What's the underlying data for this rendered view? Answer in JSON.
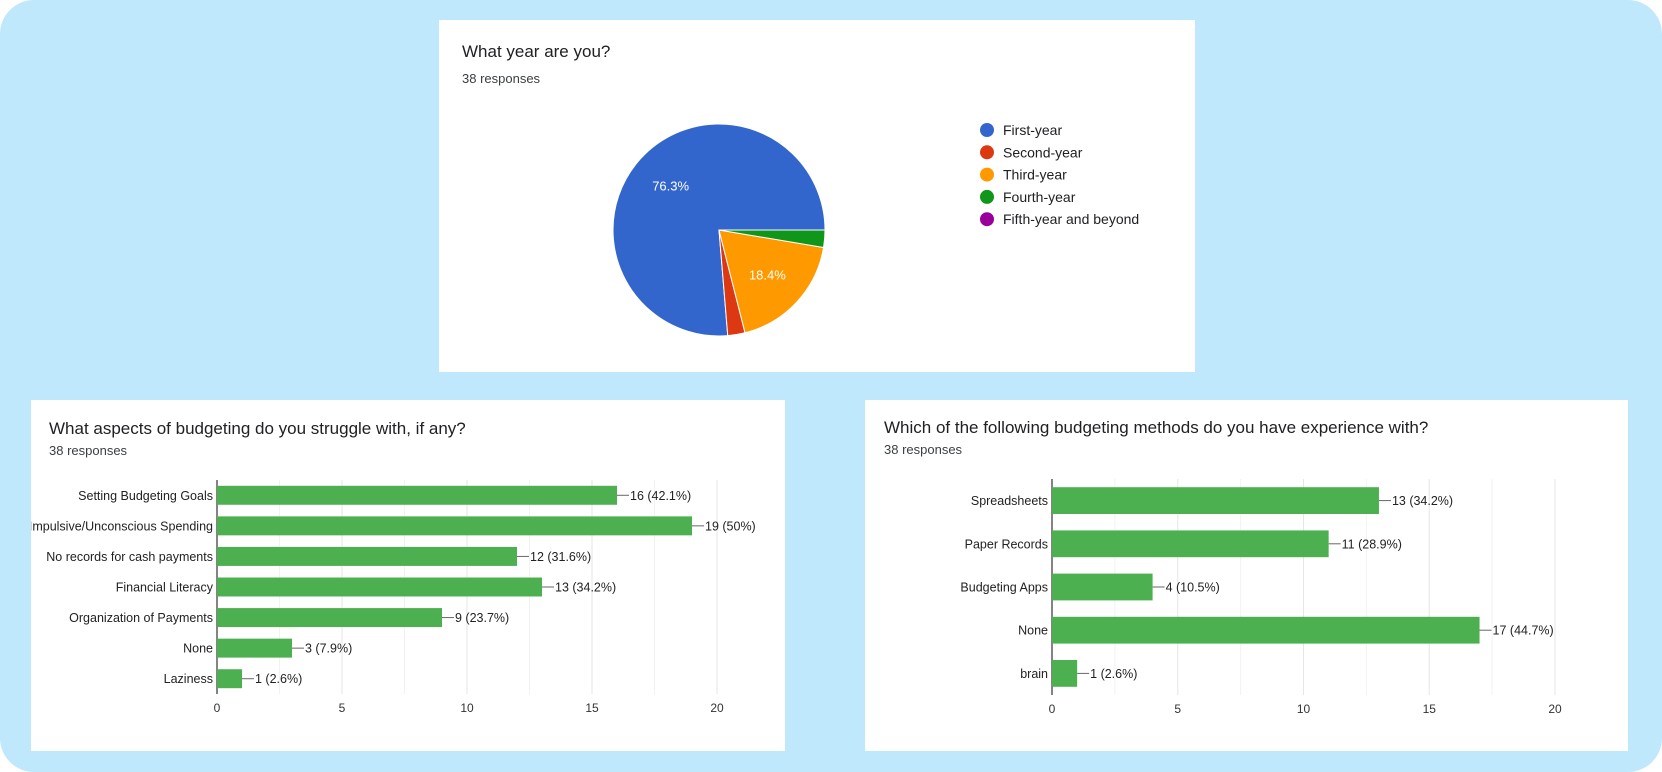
{
  "colors": {
    "background": "#bfe8fc",
    "bar": "#4caf50",
    "blue": "#3366cc",
    "red": "#dc3912",
    "orange": "#ff9900",
    "green": "#109618",
    "purple": "#990099"
  },
  "pie_card": {
    "title": "What year are you?",
    "responses": "38 responses"
  },
  "struggle_card": {
    "title": "What aspects of budgeting do you struggle with, if any?",
    "responses": "38 responses"
  },
  "methods_card": {
    "title": "Which of the following budgeting methods do you have experience with?",
    "responses": "38 responses"
  },
  "chart_data": [
    {
      "type": "pie",
      "title": "What year are you?",
      "subtitle": "38 responses",
      "categories": [
        "First-year",
        "Second-year",
        "Third-year",
        "Fourth-year",
        "Fifth-year and beyond"
      ],
      "values": [
        29,
        1,
        7,
        1,
        0
      ],
      "colors": [
        "#3366cc",
        "#dc3912",
        "#ff9900",
        "#109618",
        "#990099"
      ],
      "slice_labels": [
        "76.3%",
        "",
        "18.4%",
        "",
        ""
      ],
      "legend": "right"
    },
    {
      "type": "bar",
      "orientation": "horizontal",
      "title": "What aspects of budgeting do you struggle with, if any?",
      "subtitle": "38 responses",
      "categories": [
        "Setting Budgeting Goals",
        "Impulsive/Unconscious Spending",
        "No records for cash payments",
        "Financial Literacy",
        "Organization of Payments",
        "None",
        "Laziness"
      ],
      "values": [
        16,
        19,
        12,
        13,
        9,
        3,
        1
      ],
      "data_labels": [
        "16 (42.1%)",
        "19 (50%)",
        "12 (31.6%)",
        "13 (34.2%)",
        "9 (23.7%)",
        "3 (7.9%)",
        "1 (2.6%)"
      ],
      "xlim": [
        0,
        20
      ],
      "xticks": [
        "0",
        "5",
        "10",
        "15",
        "20"
      ],
      "grid": true
    },
    {
      "type": "bar",
      "orientation": "horizontal",
      "title": "Which of the following budgeting methods do you have experience with?",
      "subtitle": "38 responses",
      "categories": [
        "Spreadsheets",
        "Paper Records",
        "Budgeting Apps",
        "None",
        "brain"
      ],
      "values": [
        13,
        11,
        4,
        17,
        1
      ],
      "data_labels": [
        "13 (34.2%)",
        "11 (28.9%)",
        "4 (10.5%)",
        "17 (44.7%)",
        "1 (2.6%)"
      ],
      "xlim": [
        0,
        20
      ],
      "xticks": [
        "0",
        "5",
        "10",
        "15",
        "20"
      ],
      "grid": true
    }
  ]
}
